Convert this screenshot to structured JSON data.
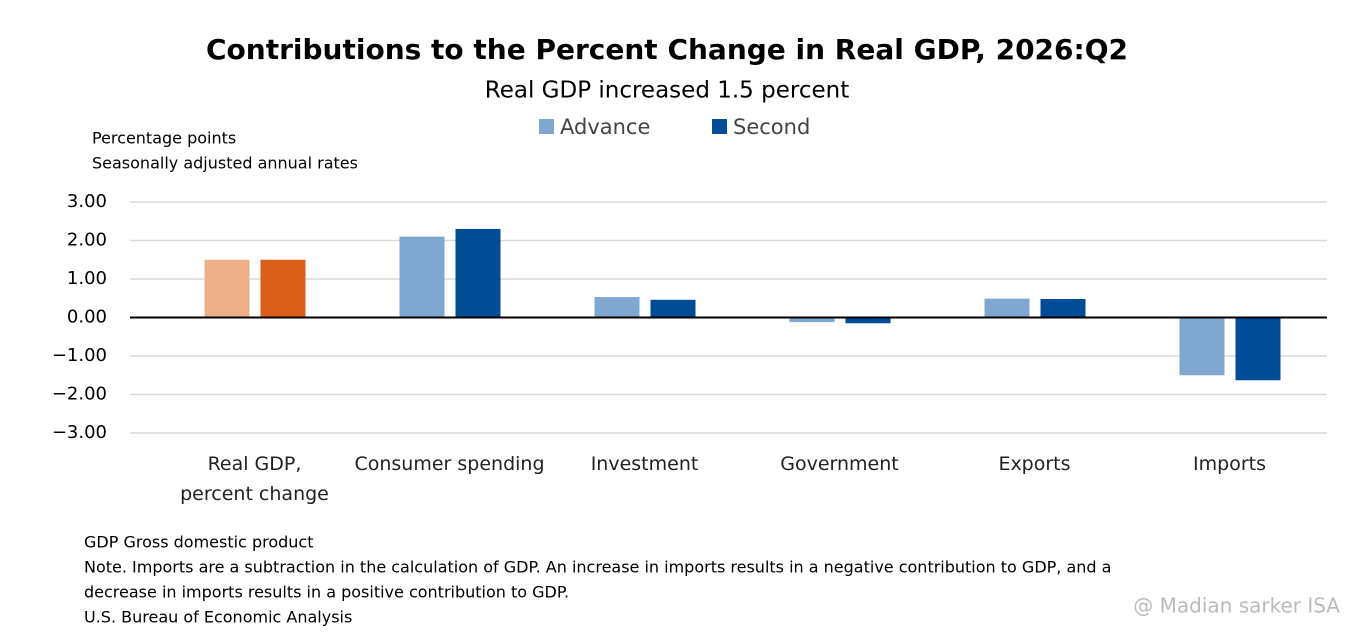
{
  "chart_data": {
    "type": "bar",
    "title": "Contributions to the Percent Change in Real GDP, 2026:Q2",
    "subtitle": "Real GDP increased 1.5 percent",
    "y_label": [
      "Percentage points",
      "Seasonally adjusted annual rates"
    ],
    "categories": [
      "Real GDP,\npercent change",
      "Consumer spending",
      "Investment",
      "Government",
      "Exports",
      "Imports"
    ],
    "series": [
      {
        "name": "Advance",
        "color": "#7FA7CF",
        "colors": [
          "#EBB08A",
          "#7FA7CF",
          "#7FA7CF",
          "#7FA7CF",
          "#7FA7CF",
          "#7FA7CF"
        ],
        "values": [
          1.5,
          2.1,
          0.53,
          -0.12,
          0.49,
          -1.5
        ]
      },
      {
        "name": "Second",
        "color": "#004C97",
        "colors": [
          "#D95F1A",
          "#004C97",
          "#004C97",
          "#004C97",
          "#004C97",
          "#004C97"
        ],
        "values": [
          1.5,
          2.3,
          0.46,
          -0.15,
          0.48,
          -1.63
        ]
      }
    ],
    "ylim": [
      -3,
      3
    ],
    "yticks": [
      {
        "value": -3,
        "label": "−3.00"
      },
      {
        "value": -2,
        "label": "−2.00"
      },
      {
        "value": -1,
        "label": "−1.00"
      },
      {
        "value": 0,
        "label": "0.00"
      },
      {
        "value": 1,
        "label": "1.00"
      },
      {
        "value": 2,
        "label": "2.00"
      },
      {
        "value": 3,
        "label": "3.00"
      }
    ],
    "grid": true,
    "notes": [
      "GDP Gross domestic product",
      "Note. Imports are a subtraction in the calculation of GDP. An increase in imports results in a negative contribution to GDP, and a",
      "decrease in imports results in a positive contribution to GDP.",
      "U.S. Bureau of Economic Analysis"
    ],
    "watermark": "@ Madian sarker ISA"
  }
}
